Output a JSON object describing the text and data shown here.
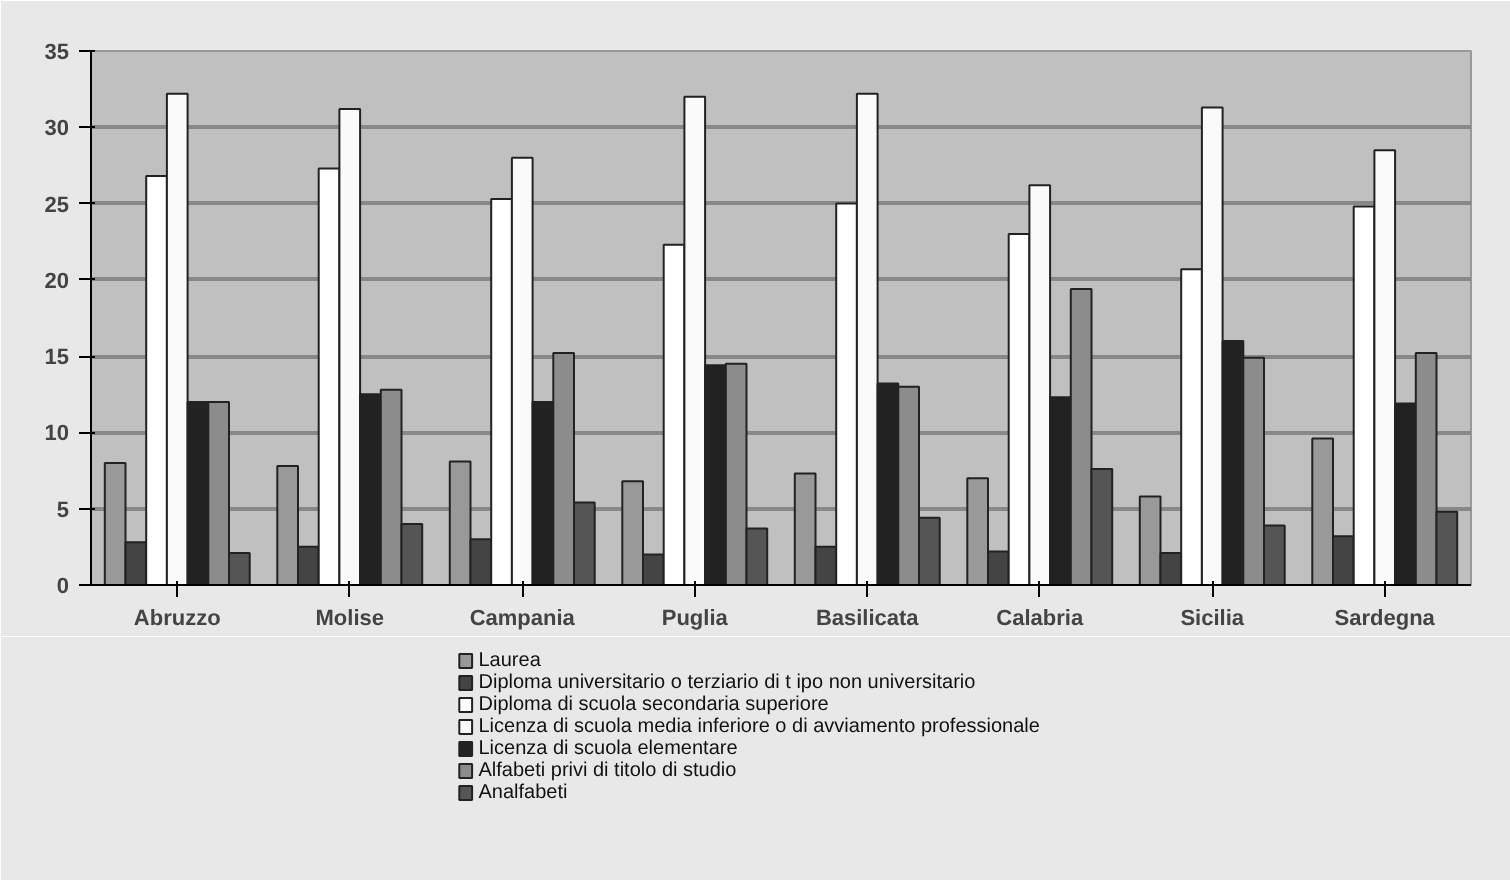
{
  "chart_data": {
    "type": "bar",
    "categories": [
      "Abruzzo",
      "Molise",
      "Campania",
      "Puglia",
      "Basilicata",
      "Calabria",
      "Sicilia",
      "Sardegna"
    ],
    "series": [
      {
        "name": "Laurea",
        "color": "#999999",
        "values": [
          8,
          7.8,
          8.1,
          6.8,
          7.3,
          7,
          5.8,
          9.6
        ]
      },
      {
        "name": "Diploma universitario o terziario di t ipo non universitario",
        "color": "#444444",
        "values": [
          2.8,
          2.5,
          3,
          2,
          2.5,
          2.2,
          2.1,
          3.2
        ]
      },
      {
        "name": "Diploma di scuola secondaria superiore",
        "color": "#ffffff",
        "values": [
          26.8,
          27.3,
          25.3,
          22.3,
          25,
          23,
          20.7,
          24.8
        ]
      },
      {
        "name": "Licenza di scuola media inferiore o di avviamento professionale",
        "color": "#fafafa",
        "values": [
          32.2,
          31.2,
          28,
          32,
          32.2,
          26.2,
          31.3,
          28.5
        ]
      },
      {
        "name": "Licenza di scuola elementare",
        "color": "#222222",
        "values": [
          12,
          12.5,
          12,
          14.4,
          13.2,
          12.3,
          16,
          11.9
        ]
      },
      {
        "name": "Alfabeti privi di titolo di studio",
        "color": "#8c8c8c",
        "values": [
          12,
          12.8,
          15.2,
          14.5,
          13,
          19.4,
          14.9,
          15.2
        ]
      },
      {
        "name": "Analfabeti",
        "color": "#555555",
        "values": [
          2.1,
          4,
          5.4,
          3.7,
          4.4,
          7.6,
          3.9,
          4.8
        ]
      }
    ],
    "ylim": [
      0,
      35
    ],
    "yticks": [
      0,
      5,
      10,
      15,
      20,
      25,
      30,
      35
    ],
    "grid": "y",
    "legend": "bottom"
  }
}
